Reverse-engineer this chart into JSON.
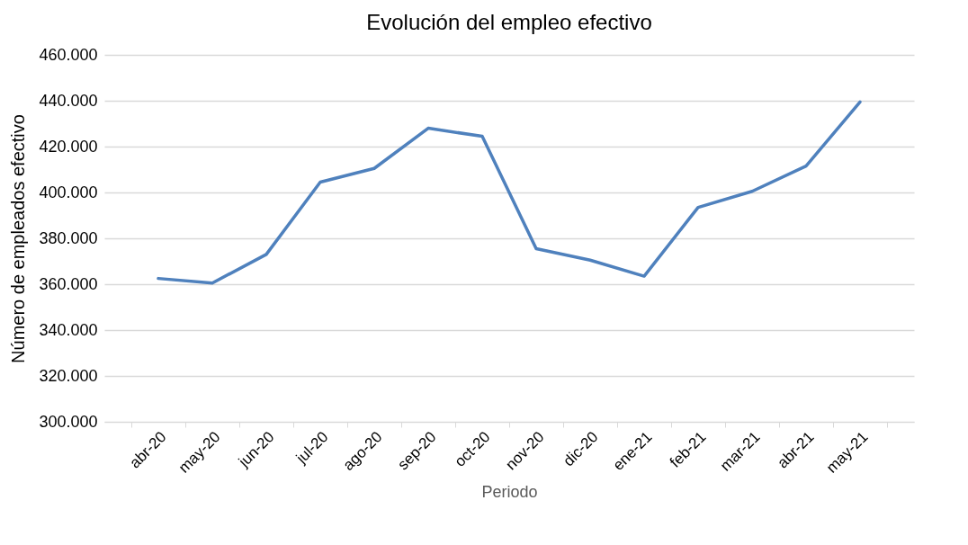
{
  "chart_data": {
    "type": "line",
    "title": "Evolución del empleo efectivo",
    "xlabel": "Periodo",
    "ylabel": "Número de empleados efectivo",
    "categories": [
      "abr-20",
      "may-20",
      "jun-20",
      "jul-20",
      "ago-20",
      "sep-20",
      "oct-20",
      "nov-20",
      "dic-20",
      "ene-21",
      "feb-21",
      "mar-21",
      "abr-21",
      "may-21"
    ],
    "series": [
      {
        "color": "#4f81bd",
        "values": [
          362500,
          360500,
          373000,
          404500,
          410500,
          428000,
          424500,
          375500,
          370500,
          363500,
          393500,
          400500,
          411500,
          439500
        ]
      }
    ],
    "ylim": [
      300000,
      460000
    ],
    "yticks": [
      {
        "value": 300000,
        "label": "300.000"
      },
      {
        "value": 320000,
        "label": "320.000"
      },
      {
        "value": 340000,
        "label": "340.000"
      },
      {
        "value": 360000,
        "label": "360.000"
      },
      {
        "value": 380000,
        "label": "380.000"
      },
      {
        "value": 400000,
        "label": "400.000"
      },
      {
        "value": 420000,
        "label": "420.000"
      },
      {
        "value": 440000,
        "label": "440.000"
      },
      {
        "value": 460000,
        "label": "460.000"
      }
    ],
    "grid": "y",
    "marker": "none",
    "line_style": "solid"
  }
}
